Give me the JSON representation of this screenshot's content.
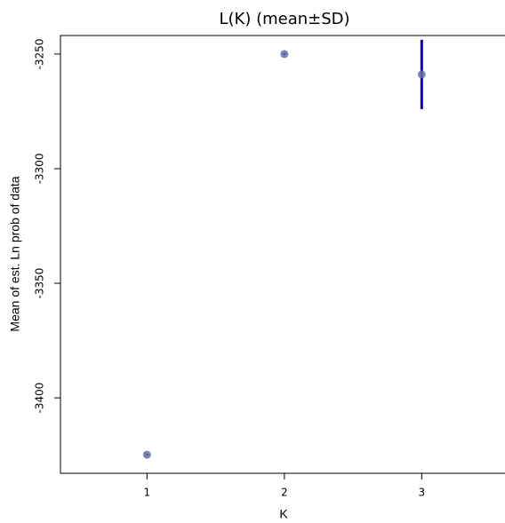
{
  "chart_data": {
    "type": "scatter",
    "title": "L(K) (mean±SD)",
    "x_label": "K",
    "y_label": "Mean of est. Ln prob of data",
    "x": [
      1,
      2,
      3
    ],
    "values": [
      -3424.8,
      -3250,
      -3258.9
    ],
    "errors": [
      0.5,
      0.5,
      15.1
    ],
    "point_color": "#6670a8",
    "error_color": "#0000dd",
    "xlim": [
      0.37,
      3.63
    ],
    "xticks": [
      1,
      2,
      3
    ],
    "ylim": [
      -3432.9,
      -3241.9
    ],
    "yticks": [
      -3400,
      -3350,
      -3300,
      -3250
    ]
  }
}
